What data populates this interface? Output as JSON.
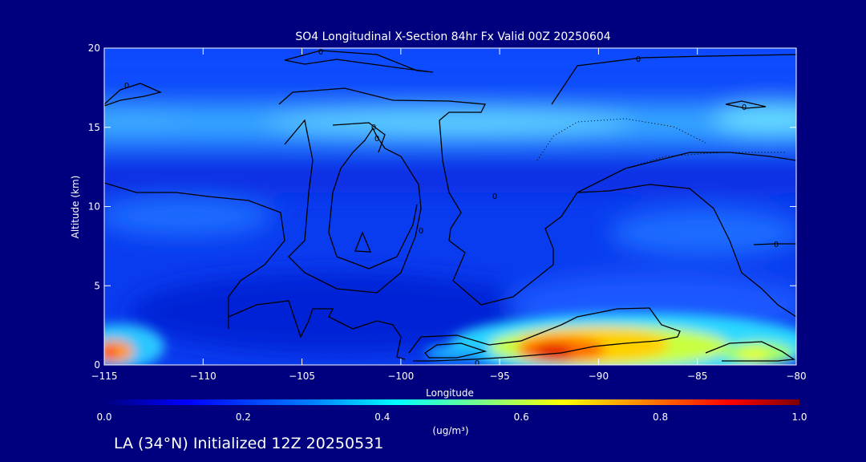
{
  "footer": "LA (34°N) Initialized 12Z 20250531",
  "chart_data": {
    "type": "contour",
    "title": "SO4 Longitudinal X-Section 84hr  Fx Valid 00Z 20250604",
    "xlabel": "Longitude",
    "ylabel": "Altitude (km)",
    "xlim": [
      -115,
      -80
    ],
    "ylim": [
      0,
      20
    ],
    "x_ticks": [
      -115,
      -110,
      -105,
      -100,
      -95,
      -90,
      -85,
      -80
    ],
    "y_ticks": [
      0,
      5,
      10,
      15,
      20
    ],
    "colorbar": {
      "label": "(ug/m³)",
      "range": [
        0.0,
        1.0
      ],
      "ticks": [
        "0.0",
        "0.2",
        "0.4",
        "0.6",
        "0.8",
        "1.0"
      ],
      "colors": [
        "#00007f",
        "#0000ff",
        "#0080ff",
        "#00ffff",
        "#80ff80",
        "#ffff00",
        "#ff8000",
        "#ff0000",
        "#7f0000"
      ]
    },
    "contour_labels": [
      "0",
      "0",
      "0",
      "0",
      "0",
      "0",
      "0",
      "0",
      "0",
      "0"
    ],
    "features": [
      {
        "lon": -91.5,
        "alt": 0.8,
        "value": 0.85
      },
      {
        "lon": -89.5,
        "alt": 1.3,
        "value": 0.62
      },
      {
        "lon": -86,
        "alt": 1.0,
        "value": 0.5
      },
      {
        "lon": -82.5,
        "alt": 0.6,
        "value": 0.55
      },
      {
        "lon": -96,
        "alt": 0.8,
        "value": 0.42
      },
      {
        "lon": -114.5,
        "alt": 0.9,
        "value": 0.7
      },
      {
        "lon": -97,
        "alt": 15.2,
        "value": 0.35
      },
      {
        "lon": -82,
        "alt": 15.8,
        "value": 0.38
      },
      {
        "lon": -113,
        "alt": 15.2,
        "value": 0.28
      }
    ]
  }
}
